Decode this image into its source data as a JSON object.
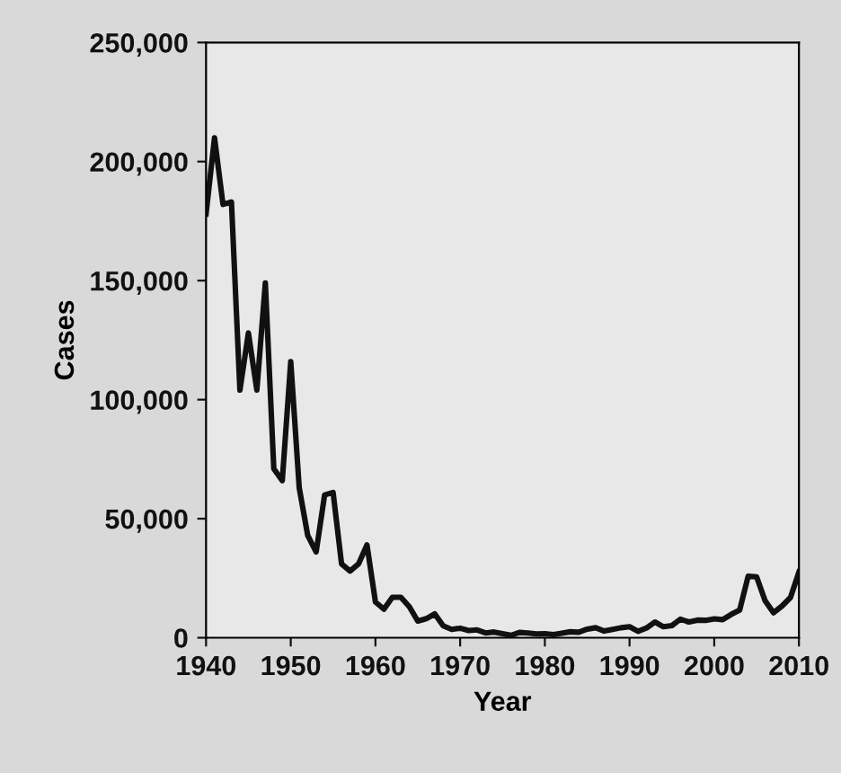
{
  "chart_data": {
    "type": "line",
    "xlabel": "Year",
    "ylabel": "Cases",
    "x": [
      1940,
      1941,
      1942,
      1943,
      1944,
      1945,
      1946,
      1947,
      1948,
      1949,
      1950,
      1951,
      1952,
      1953,
      1954,
      1955,
      1956,
      1957,
      1958,
      1959,
      1960,
      1961,
      1962,
      1963,
      1964,
      1965,
      1966,
      1967,
      1968,
      1969,
      1970,
      1971,
      1972,
      1973,
      1974,
      1975,
      1976,
      1977,
      1978,
      1979,
      1980,
      1981,
      1982,
      1983,
      1984,
      1985,
      1986,
      1987,
      1988,
      1989,
      1990,
      1991,
      1992,
      1993,
      1994,
      1995,
      1996,
      1997,
      1998,
      1999,
      2000,
      2001,
      2002,
      2003,
      2004,
      2005,
      2006,
      2007,
      2008,
      2009,
      2010
    ],
    "series": [
      {
        "color": "#111111",
        "values": [
          178000,
          210000,
          182000,
          183000,
          104000,
          128000,
          104000,
          149000,
          71000,
          66000,
          116000,
          63000,
          43000,
          36000,
          60000,
          61000,
          31000,
          28000,
          31000,
          39000,
          15000,
          12000,
          17000,
          17000,
          13000,
          7000,
          8000,
          10000,
          5000,
          3500,
          4000,
          3000,
          3300,
          2000,
          2400,
          1700,
          1000,
          2200,
          2000,
          1600,
          1700,
          1300,
          1900,
          2500,
          2300,
          3600,
          4200,
          2800,
          3500,
          4200,
          4600,
          2700,
          4100,
          6600,
          4600,
          5100,
          7800,
          6600,
          7400,
          7300,
          7900,
          7600,
          9800,
          11600,
          25800,
          25600,
          15600,
          10500,
          13300,
          16900,
          27600
        ]
      }
    ],
    "xlim": [
      1940,
      2010
    ],
    "xticks": [
      1940,
      1950,
      1960,
      1970,
      1980,
      1990,
      2000,
      2010
    ],
    "ylim": [
      0,
      250000
    ],
    "yticks": [
      {
        "value": 0,
        "label": "0"
      },
      {
        "value": 50000,
        "label": "50,000"
      },
      {
        "value": 100000,
        "label": "100,000"
      },
      {
        "value": 150000,
        "label": "150,000"
      },
      {
        "value": 200000,
        "label": "200,000"
      },
      {
        "value": 250000,
        "label": "250,000"
      }
    ],
    "grid": false,
    "legend": false,
    "marker": "none",
    "line_style": "solid"
  }
}
